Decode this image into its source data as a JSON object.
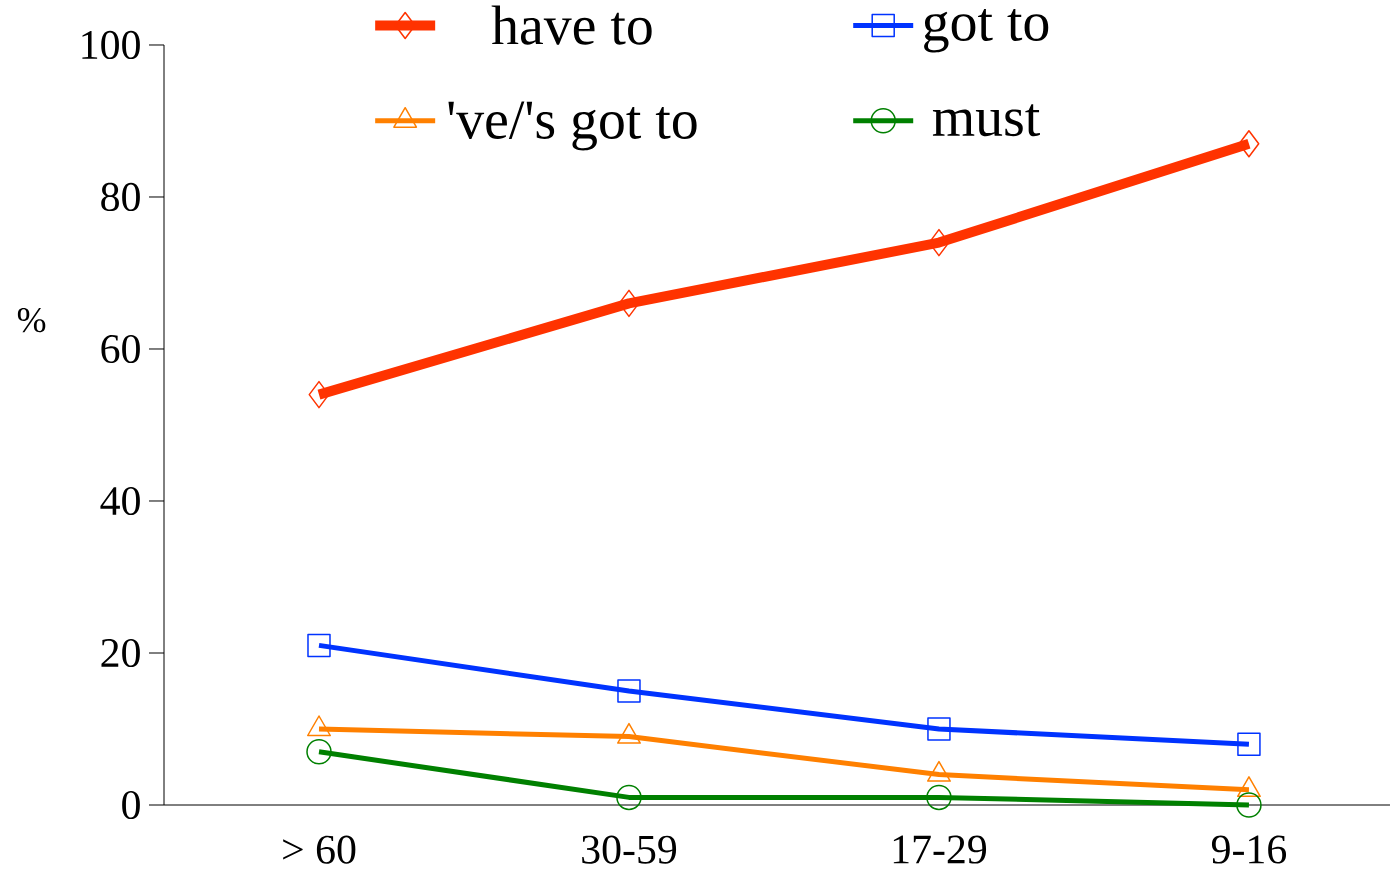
{
  "chart_data": {
    "type": "line",
    "ylabel": "%",
    "categories": [
      "> 60",
      "30-59",
      "17-29",
      "9-16"
    ],
    "ylim": [
      0,
      100
    ],
    "yticks": [
      0,
      20,
      40,
      60,
      80,
      100
    ],
    "grid": false,
    "legend": "top",
    "series": [
      {
        "name": "have to",
        "color": "#ff3300",
        "marker": "diamond",
        "values": [
          54,
          66,
          74,
          87
        ]
      },
      {
        "name": "got to",
        "color": "#0033ff",
        "marker": "square",
        "values": [
          21,
          15,
          10,
          8
        ]
      },
      {
        "name": "'ve/'s got to",
        "color": "#ff8000",
        "marker": "triangle",
        "values": [
          10,
          9,
          4,
          2
        ]
      },
      {
        "name": "must",
        "color": "#008000",
        "marker": "circle",
        "values": [
          7,
          1,
          1,
          0
        ]
      }
    ]
  }
}
